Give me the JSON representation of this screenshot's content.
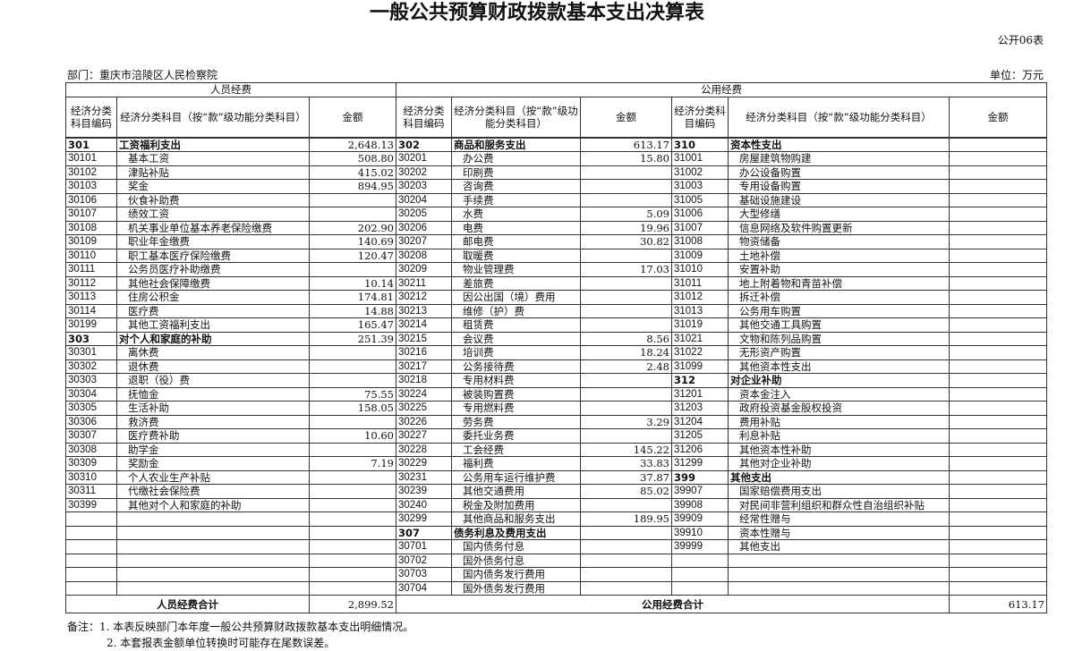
{
  "title": "一般公共预算财政拨款基本支出决算表",
  "form_no": "公开06表",
  "department": "部门：重庆市涪陵区人民检察院",
  "unit": "单位：万元",
  "headers": {
    "personnel": "人员经费",
    "public": "公用经费",
    "code": "经济分类科目编码",
    "name_short": "经济分类科目（按“款”级功能分类科目）",
    "name_long": "经济分类科目（按“款”级功能分类科目）",
    "amount": "金额"
  },
  "personnel_rows": [
    {
      "code": "301",
      "name": "工资福利支出",
      "amount": "2,648.13",
      "cat": true
    },
    {
      "code": "30101",
      "name": "基本工资",
      "amount": "508.80"
    },
    {
      "code": "30102",
      "name": "津贴补贴",
      "amount": "415.02"
    },
    {
      "code": "30103",
      "name": "奖金",
      "amount": "894.95"
    },
    {
      "code": "30106",
      "name": "伙食补助费",
      "amount": ""
    },
    {
      "code": "30107",
      "name": "绩效工资",
      "amount": ""
    },
    {
      "code": "30108",
      "name": "机关事业单位基本养老保险缴费",
      "amount": "202.90"
    },
    {
      "code": "30109",
      "name": "职业年金缴费",
      "amount": "140.69"
    },
    {
      "code": "30110",
      "name": "职工基本医疗保险缴费",
      "amount": "120.47"
    },
    {
      "code": "30111",
      "name": "公务员医疗补助缴费",
      "amount": ""
    },
    {
      "code": "30112",
      "name": "其他社会保障缴费",
      "amount": "10.14"
    },
    {
      "code": "30113",
      "name": "住房公积金",
      "amount": "174.81"
    },
    {
      "code": "30114",
      "name": "医疗费",
      "amount": "14.88"
    },
    {
      "code": "30199",
      "name": "其他工资福利支出",
      "amount": "165.47"
    },
    {
      "code": "303",
      "name": "对个人和家庭的补助",
      "amount": "251.39",
      "cat": true
    },
    {
      "code": "30301",
      "name": "离休费",
      "amount": ""
    },
    {
      "code": "30302",
      "name": "退休费",
      "amount": ""
    },
    {
      "code": "30303",
      "name": "退职（役）费",
      "amount": ""
    },
    {
      "code": "30304",
      "name": "抚恤金",
      "amount": "75.55"
    },
    {
      "code": "30305",
      "name": "生活补助",
      "amount": "158.05"
    },
    {
      "code": "30306",
      "name": "救济费",
      "amount": ""
    },
    {
      "code": "30307",
      "name": "医疗费补助",
      "amount": "10.60"
    },
    {
      "code": "30308",
      "name": "助学金",
      "amount": ""
    },
    {
      "code": "30309",
      "name": "奖励金",
      "amount": "7.19"
    },
    {
      "code": "30310",
      "name": "个人农业生产补贴",
      "amount": ""
    },
    {
      "code": "30311",
      "name": "代缴社会保险费",
      "amount": ""
    },
    {
      "code": "30399",
      "name": "其他对个人和家庭的补助",
      "amount": ""
    }
  ],
  "public_rows_a": [
    {
      "code": "302",
      "name": "商品和服务支出",
      "amount": "613.17",
      "cat": true
    },
    {
      "code": "30201",
      "name": "办公费",
      "amount": "15.80"
    },
    {
      "code": "30202",
      "name": "印刷费",
      "amount": ""
    },
    {
      "code": "30203",
      "name": "咨询费",
      "amount": ""
    },
    {
      "code": "30204",
      "name": "手续费",
      "amount": ""
    },
    {
      "code": "30205",
      "name": "水费",
      "amount": "5.09"
    },
    {
      "code": "30206",
      "name": "电费",
      "amount": "19.96"
    },
    {
      "code": "30207",
      "name": "邮电费",
      "amount": "30.82"
    },
    {
      "code": "30208",
      "name": "取暖费",
      "amount": ""
    },
    {
      "code": "30209",
      "name": "物业管理费",
      "amount": "17.03"
    },
    {
      "code": "30211",
      "name": "差旅费",
      "amount": ""
    },
    {
      "code": "30212",
      "name": "因公出国（境）费用",
      "amount": ""
    },
    {
      "code": "30213",
      "name": "维修（护）费",
      "amount": ""
    },
    {
      "code": "30214",
      "name": "租赁费",
      "amount": ""
    },
    {
      "code": "30215",
      "name": "会议费",
      "amount": "8.56"
    },
    {
      "code": "30216",
      "name": "培训费",
      "amount": "18.24"
    },
    {
      "code": "30217",
      "name": "公务接待费",
      "amount": "2.48"
    },
    {
      "code": "30218",
      "name": "专用材料费",
      "amount": ""
    },
    {
      "code": "30224",
      "name": "被装购置费",
      "amount": ""
    },
    {
      "code": "30225",
      "name": "专用燃料费",
      "amount": ""
    },
    {
      "code": "30226",
      "name": "劳务费",
      "amount": "3.29"
    },
    {
      "code": "30227",
      "name": "委托业务费",
      "amount": ""
    },
    {
      "code": "30228",
      "name": "工会经费",
      "amount": "145.22"
    },
    {
      "code": "30229",
      "name": "福利费",
      "amount": "33.83"
    },
    {
      "code": "30231",
      "name": "公务用车运行维护费",
      "amount": "37.87"
    },
    {
      "code": "30239",
      "name": "其他交通费用",
      "amount": "85.02"
    },
    {
      "code": "30240",
      "name": "税金及附加费用",
      "amount": ""
    },
    {
      "code": "30299",
      "name": "其他商品和服务支出",
      "amount": "189.95"
    },
    {
      "code": "307",
      "name": "债务利息及费用支出",
      "amount": "",
      "cat": true
    },
    {
      "code": "30701",
      "name": "国内债务付息",
      "amount": ""
    },
    {
      "code": "30702",
      "name": "国外债务付息",
      "amount": ""
    },
    {
      "code": "30703",
      "name": "国内债务发行费用",
      "amount": ""
    },
    {
      "code": "30704",
      "name": "国外债务发行费用",
      "amount": ""
    }
  ],
  "public_rows_b": [
    {
      "code": "310",
      "name": "资本性支出",
      "amount": "",
      "cat": true
    },
    {
      "code": "31001",
      "name": "房屋建筑物购建",
      "amount": ""
    },
    {
      "code": "31002",
      "name": "办公设备购置",
      "amount": ""
    },
    {
      "code": "31003",
      "name": "专用设备购置",
      "amount": ""
    },
    {
      "code": "31005",
      "name": "基础设施建设",
      "amount": ""
    },
    {
      "code": "31006",
      "name": "大型修缮",
      "amount": ""
    },
    {
      "code": "31007",
      "name": "信息网络及软件购置更新",
      "amount": ""
    },
    {
      "code": "31008",
      "name": "物资储备",
      "amount": ""
    },
    {
      "code": "31009",
      "name": "土地补偿",
      "amount": ""
    },
    {
      "code": "31010",
      "name": "安置补助",
      "amount": ""
    },
    {
      "code": "31011",
      "name": "地上附着物和青苗补偿",
      "amount": ""
    },
    {
      "code": "31012",
      "name": "拆迁补偿",
      "amount": ""
    },
    {
      "code": "31013",
      "name": "公务用车购置",
      "amount": ""
    },
    {
      "code": "31019",
      "name": "其他交通工具购置",
      "amount": ""
    },
    {
      "code": "31021",
      "name": "文物和陈列品购置",
      "amount": ""
    },
    {
      "code": "31022",
      "name": "无形资产购置",
      "amount": ""
    },
    {
      "code": "31099",
      "name": "其他资本性支出",
      "amount": ""
    },
    {
      "code": "312",
      "name": "对企业补助",
      "amount": "",
      "cat": true
    },
    {
      "code": "31201",
      "name": "资本金注入",
      "amount": ""
    },
    {
      "code": "31203",
      "name": "政府投资基金股权投资",
      "amount": ""
    },
    {
      "code": "31204",
      "name": "费用补贴",
      "amount": ""
    },
    {
      "code": "31205",
      "name": "利息补贴",
      "amount": ""
    },
    {
      "code": "31206",
      "name": "其他资本性补助",
      "amount": ""
    },
    {
      "code": "31299",
      "name": "其他对企业补助",
      "amount": ""
    },
    {
      "code": "399",
      "name": "其他支出",
      "amount": "",
      "cat": true
    },
    {
      "code": "39907",
      "name": "国家赔偿费用支出",
      "amount": ""
    },
    {
      "code": "39908",
      "name": "对民间非营利组织和群众性自治组织补贴",
      "amount": ""
    },
    {
      "code": "39909",
      "name": "经常性赠与",
      "amount": ""
    },
    {
      "code": "39910",
      "name": "资本性赠与",
      "amount": ""
    },
    {
      "code": "39999",
      "name": "其他支出",
      "amount": ""
    }
  ],
  "totals": {
    "personnel_label": "人员经费合计",
    "personnel_amount": "2,899.52",
    "public_label": "公用经费合计",
    "public_amount": "613.17"
  },
  "notes": [
    "备注：1. 本表反映部门本年度一般公共预算财政拨款基本支出明细情况。",
    "2. 本套报表金额单位转换时可能存在尾数误差。"
  ]
}
